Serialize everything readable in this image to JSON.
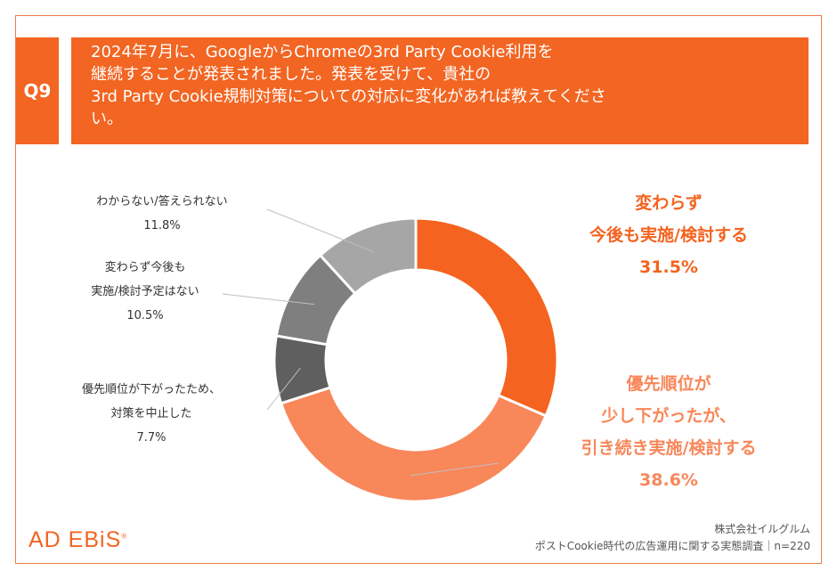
{
  "question": {
    "number": "Q9",
    "lines": [
      "2024年7月に、GoogleからChromeの3rd Party Cookie利用を",
      "継続することが発表されました。発表を受けて、貴社の",
      "3rd Party Cookie規制対策についての対応に変化があれば教えてくださ",
      "い。"
    ]
  },
  "chart_data": {
    "type": "pie",
    "donut": true,
    "slices": [
      {
        "label_lines": [
          "変わらず",
          "今後も実施/検討する"
        ],
        "value": 31.5,
        "value_label": "31.5%",
        "color": "#f4631f"
      },
      {
        "label_lines": [
          "優先順位が",
          "少し下がったが、",
          "引き続き実施/検討する"
        ],
        "value": 38.6,
        "value_label": "38.6%",
        "color": "#f8875a"
      },
      {
        "label_lines": [
          "優先順位が下がったため、",
          "対策を中止した"
        ],
        "value": 7.7,
        "value_label": "7.7%",
        "color": "#5f5f5f"
      },
      {
        "label_lines": [
          "変わらず今後も",
          "実施/検討予定はない"
        ],
        "value": 10.5,
        "value_label": "10.5%",
        "color": "#7f7f7f"
      },
      {
        "label_lines": [
          "わからない/答えられない"
        ],
        "value": 11.8,
        "value_label": "11.8%",
        "color": "#a6a6a6"
      }
    ]
  },
  "footer": {
    "logo": "AD EBiS",
    "logo_mark": "®",
    "source_lines": [
      "株式会社イルグルム",
      "ポストCookie時代の広告運用に関する実態調査｜n=220"
    ]
  }
}
